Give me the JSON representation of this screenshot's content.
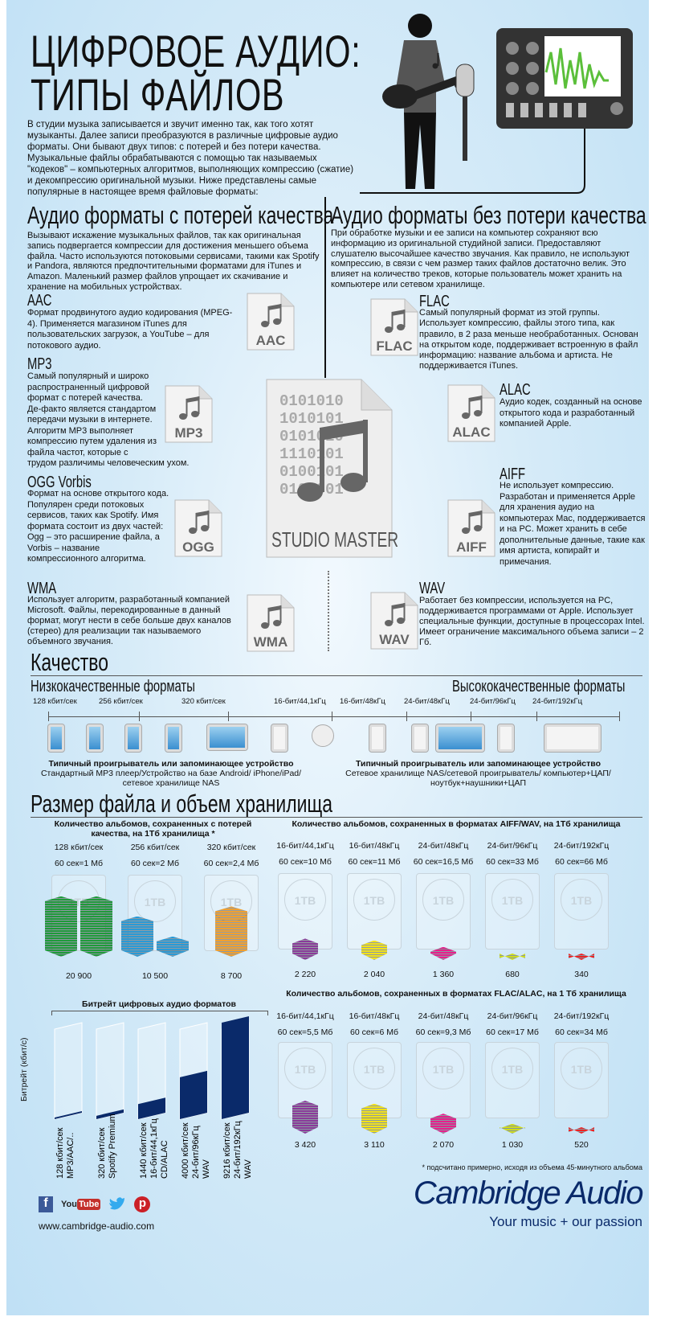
{
  "title": {
    "line1": "ЦИФРОВОЕ АУДИО:",
    "line2": "ТИПЫ ФАЙЛОВ"
  },
  "intro": "В студии музыка записывается и звучит именно так, как того хотят музыканты. Далее записи преобразуются в различные цифровые аудио форматы. Они бывают двух типов: с потерей и без потери качества. Музыкальные файлы обрабатываются с помощью так называемых \"кодеков\" – компьютерных алгоритмов, выполняющих компрессию (сжатие) и декомпрессию оригинальной музыки. Ниже представлены самые популярные в настоящее время файловые форматы:",
  "lossy": {
    "heading": "Аудио форматы с потерей качества",
    "text": "Вызывают искажение музыкальных файлов, так как оригинальная запись подвергается компрессии для достижения меньшего объема файла. Часто используются потоковыми сервисами, такими как Spotify и Pandora, являются предпочтительными форматами для iTunes и Amazon. Маленький размер файлов упрощает их скачивание и хранение на мобильных устройствах.",
    "formats": [
      {
        "name": "AAC",
        "icon_label": "AAC",
        "text": "Формат продвинутого аудио кодирования (MPEG-4). Применяется магазином iTunes для пользовательских загрузок, а YouTube – для потокового аудио."
      },
      {
        "name": "MP3",
        "icon_label": "MP3",
        "text": "Самый популярный и широко распространенный цифровой формат с потерей качества. Де-факто является стандартом передачи музыки в интернете. Алгоритм MP3 выполняет компрессию путем удаления из файла частот, которые с трудом различимы человеческим ухом."
      },
      {
        "name": "OGG Vorbis",
        "icon_label": "OGG",
        "text": "Формат на основе открытого кода. Популярен среди потоковых сервисов, таких как Spotify. Имя формата состоит из двух частей: Ogg – это расширение файла, а Vorbis – название компрессионного алгоритма."
      },
      {
        "name": "WMA",
        "icon_label": "WMA",
        "text": "Использует алгоритм, разработанный компанией Microsoft. Файлы, перекодированные в данный формат, могут нести в себе больше двух каналов (стерео) для реализации так называемого объемного звучания."
      }
    ]
  },
  "lossless": {
    "heading": "Аудио форматы без потери качества",
    "text": "При обработке музыки и ее записи на компьютер сохраняют всю информацию из оригинальной студийной записи. Предоставляют слушателю высочайшее качество звучания. Как правило, не используют компрессию, в связи с чем размер таких файлов достаточно велик. Это влияет на количество треков, которые пользователь может хранить на компьютере или сетевом хранилище.",
    "formats": [
      {
        "name": "FLAC",
        "icon_label": "FLAC",
        "text": "Самый популярный формат из этой группы. Использует компрессию, файлы этого типа, как правило, в 2 раза меньше необработанных. Основан на открытом коде, поддерживает встроенную в файл информацию: название альбома и артиста. Не поддерживается iTunes."
      },
      {
        "name": "ALAC",
        "icon_label": "ALAC",
        "text": "Аудио кодек, созданный на основе открытого кода и разработанный компанией Apple."
      },
      {
        "name": "AIFF",
        "icon_label": "AIFF",
        "text": "Не использует компрессию. Разработан и применяется Apple для хранения аудио на компьютерах Mac, поддерживается и на PC. Может хранить в себе дополнительные данные, такие как имя артиста, копирайт и примечания."
      },
      {
        "name": "WAV",
        "icon_label": "WAV",
        "text": "Работает без компрессии, используется на PC, поддерживается программами от Apple. Использует специальные функции, доступные в процессорах Intel. Имеет ограничение максимального объема записи – 2 Гб."
      }
    ]
  },
  "studio_master": {
    "label": "STUDIO MASTER",
    "binary": [
      "0101010",
      "1010101",
      "0101010",
      "1110101",
      "0100101",
      "0101001"
    ]
  },
  "quality": {
    "heading": "Качество",
    "low_label": "Низкокачественные форматы",
    "high_label": "Высококачественные форматы",
    "ticks": [
      "128 кбит/сек",
      "256 кбит/сек",
      "320 кбит/сек",
      "16-бит/44,1кГц",
      "16-бит/48кГц",
      "24-бит/48кГц",
      "24-бит/96кГц",
      "24-бит/192кГц"
    ],
    "devices": [
      "mp3-player",
      "android-phone",
      "smartphone",
      "iphone",
      "tablet",
      "nas-drive",
      "cd-disc",
      "nas-drive",
      "computer",
      "network-player",
      "computer-dac",
      "headphones-laptop"
    ],
    "low_caption_title": "Типичный проигрыватель или запоминающее устройство",
    "low_caption": "Стандартный MP3 плеер/Устройство на базе Android/ iPhone/iPad/сетевое хранилище NAS",
    "high_caption_title": "Типичный проигрыватель или запоминающее устройство",
    "high_caption": "Сетевое хранилище NAS/сетевой проигрыватель/ компьютер+ЦАП/ноутбук+наушники+ЦАП"
  },
  "storage": {
    "heading": "Размер файла и объем хранилища",
    "drive_label": "1TB",
    "lossy": {
      "title": "Количество альбомов, сохраненных с потерей качества, на 1Тб хранилища *",
      "columns": [
        {
          "format": "128 кбит/сек",
          "size": "60 сек=1 Мб",
          "albums": "20 900",
          "value": 20900,
          "color": "#1f9a3a"
        },
        {
          "format": "256 кбит/сек",
          "size": "60 сек=2 Мб",
          "albums": "10 500",
          "value": 10500,
          "color": "#2a9ad6"
        },
        {
          "format": "320 кбит/сек",
          "size": "60 сек=2,4 Мб",
          "albums": "8 700",
          "value": 8700,
          "color": "#f0a030"
        }
      ]
    },
    "aiff_wav": {
      "title": "Количество альбомов, сохраненных в форматах AIFF/WAV, на 1Тб хранилища",
      "columns": [
        {
          "format": "16-бит/44,1кГц",
          "size": "60 сек=10 Мб",
          "albums": "2 220",
          "value": 2220,
          "color": "#8a3a9a"
        },
        {
          "format": "16-бит/48кГц",
          "size": "60 сек=11 Мб",
          "albums": "2 040",
          "value": 2040,
          "color": "#f2e21a"
        },
        {
          "format": "24-бит/48кГц",
          "size": "60 сек=16,5 Мб",
          "albums": "1 360",
          "value": 1360,
          "color": "#e81e8c"
        },
        {
          "format": "24-бит/96кГц",
          "size": "60 сек=33 Мб",
          "albums": "680",
          "value": 680,
          "color": "#cfdc1c"
        },
        {
          "format": "24-бит/192кГц",
          "size": "60 сек=66 Мб",
          "albums": "340",
          "value": 340,
          "color": "#ee2222"
        }
      ]
    },
    "flac_alac": {
      "title": "Количество альбомов, сохраненных в форматах FLAC/ALAC, на 1 Тб хранилища",
      "columns": [
        {
          "format": "16-бит/44,1кГц",
          "size": "60 сек=5,5 Мб",
          "albums": "3 420",
          "value": 3420,
          "color": "#8a3a9a"
        },
        {
          "format": "16-бит/48кГц",
          "size": "60 сек=6 Мб",
          "albums": "3 110",
          "value": 3110,
          "color": "#f2e21a"
        },
        {
          "format": "24-бит/48кГц",
          "size": "60 сек=9,3 Мб",
          "albums": "2 070",
          "value": 2070,
          "color": "#e81e8c"
        },
        {
          "format": "24-бит/96кГц",
          "size": "60 сек=17 Мб",
          "albums": "1 030",
          "value": 1030,
          "color": "#cfdc1c"
        },
        {
          "format": "24-бит/192кГц",
          "size": "60 сек=34 Мб",
          "albums": "520",
          "value": 520,
          "color": "#ee2222"
        }
      ]
    },
    "footnote": "* подсчитано примерно, исходя из объема 45-минутного альбома"
  },
  "chart_data": {
    "type": "bar",
    "title": "Битрейт цифровых аудио форматов",
    "ylabel": "Битрейт (кбит/с)",
    "categories": [
      "128 кбит/сек MP3/AAC/..",
      "320 кбит/сек Spotify Premium",
      "1440 кбит/сек 16-бит/44,1кГц CD/ALAC",
      "4000 кбит/сек 24-бит/96кГц WAV",
      "9216 кбит/сек 24-бит/192кГц WAV"
    ],
    "label_lines": [
      [
        "128 кбит/сек",
        "MP3/AAC/.."
      ],
      [
        "320 кбит/сек",
        "Spotify Premium"
      ],
      [
        "1440 кбит/сек",
        "16-бит/44,1кГц",
        "CD/ALAC"
      ],
      [
        "4000 кбит/сек",
        "24-бит/96кГц",
        "WAV"
      ],
      [
        "9216 кбит/сек",
        "24-бит/192кГц",
        "WAV"
      ]
    ],
    "values": [
      128,
      320,
      1440,
      4000,
      9216
    ],
    "color": "#0a2a6a"
  },
  "footer": {
    "brand": "Cambridge Audio",
    "tagline": "Your music + our passion",
    "url": "www.cambridge-audio.com",
    "social": [
      "facebook",
      "youtube",
      "twitter",
      "pinterest"
    ],
    "youtube_label": "YouTube"
  },
  "colors": {
    "brand": "#0a2a6a",
    "background": "#c6e3f6"
  }
}
